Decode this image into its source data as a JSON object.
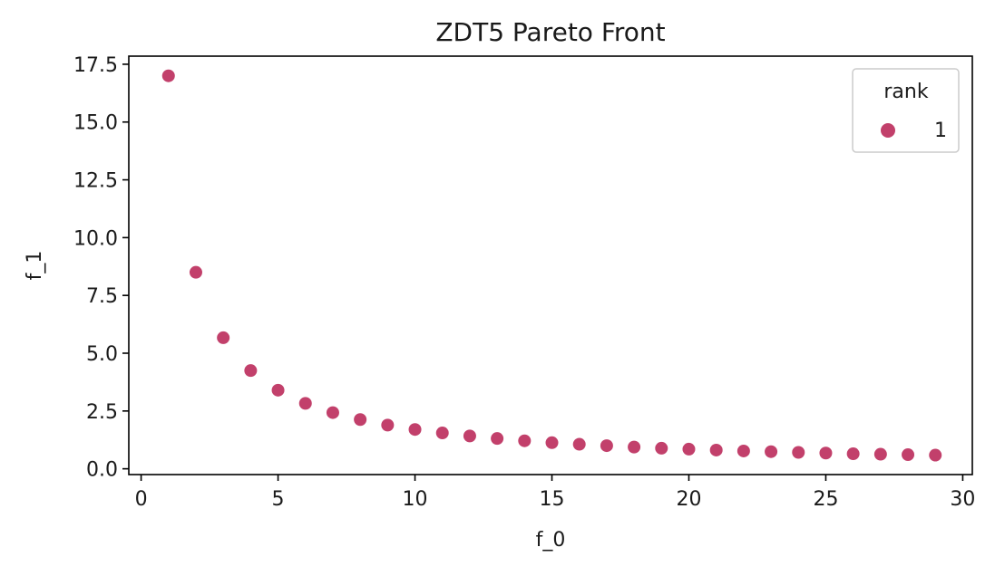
{
  "chart_data": {
    "type": "scatter",
    "title": "ZDT5 Pareto Front",
    "xlabel": "f_0",
    "ylabel": "f_1",
    "xlim": [
      -0.45,
      30.35
    ],
    "ylim": [
      -0.25,
      17.85
    ],
    "xticks": [
      0,
      5,
      10,
      15,
      20,
      25,
      30
    ],
    "xtick_labels": [
      "0",
      "5",
      "10",
      "15",
      "20",
      "25",
      "30"
    ],
    "yticks": [
      0,
      2.5,
      5,
      7.5,
      10,
      12.5,
      15,
      17.5
    ],
    "ytick_labels": [
      "0.0",
      "2.5",
      "5.0",
      "7.5",
      "10.0",
      "12.5",
      "15.0",
      "17.5"
    ],
    "grid": false,
    "legend": {
      "title": "rank",
      "placement": "top-right"
    },
    "series": [
      {
        "name": "1",
        "color": "#c2406b",
        "x": [
          1,
          2,
          3,
          4,
          5,
          6,
          7,
          8,
          9,
          10,
          11,
          12,
          13,
          14,
          15,
          16,
          17,
          18,
          19,
          20,
          21,
          22,
          23,
          24,
          25,
          26,
          27,
          28,
          29
        ],
        "y": [
          17.0,
          8.5,
          5.67,
          4.25,
          3.4,
          2.83,
          2.43,
          2.13,
          1.89,
          1.7,
          1.55,
          1.42,
          1.31,
          1.21,
          1.13,
          1.06,
          1.0,
          0.94,
          0.89,
          0.85,
          0.81,
          0.77,
          0.74,
          0.71,
          0.68,
          0.65,
          0.63,
          0.61,
          0.59
        ]
      }
    ]
  }
}
